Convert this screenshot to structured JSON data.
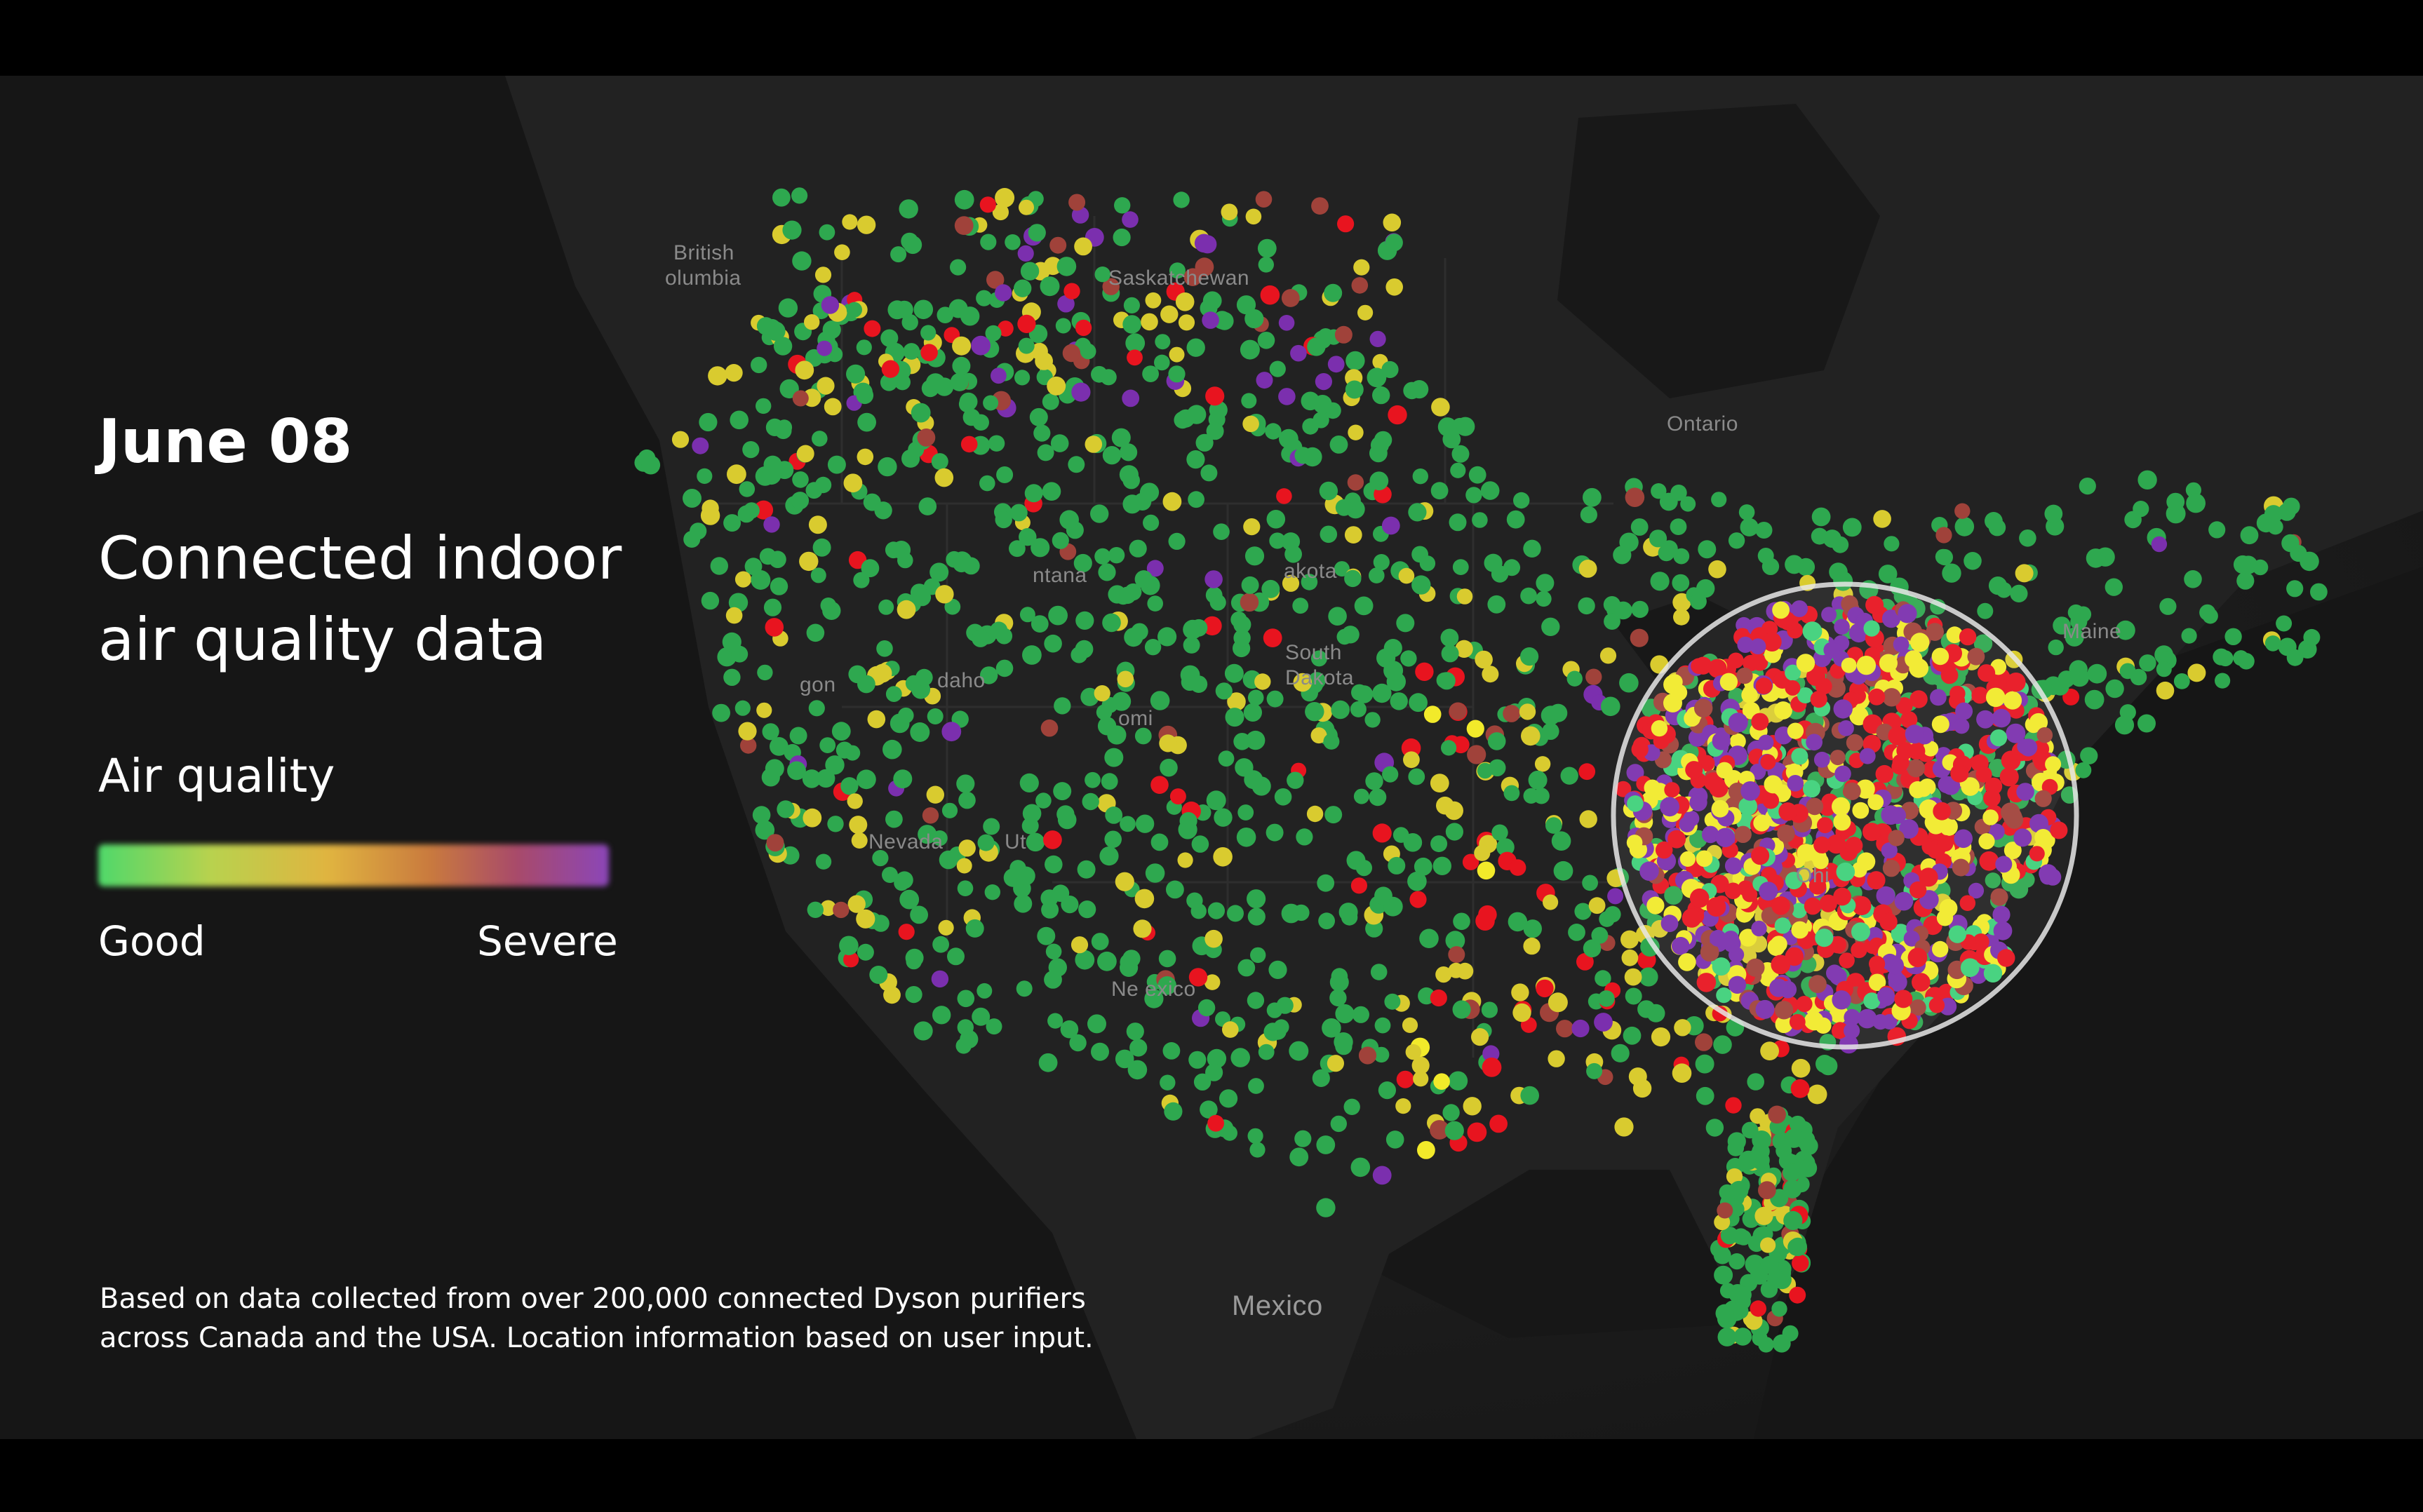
{
  "date": "June 08",
  "headline": "Connected indoor air quality data",
  "legend": {
    "title": "Air quality",
    "low_label": "Good",
    "high_label": "Severe",
    "colors": [
      "#4fd86a",
      "#b8d24e",
      "#e0b440",
      "#c97a3e",
      "#a84a6a",
      "#8b46b8"
    ]
  },
  "footnote_line1": "Based on data collected from over 200,000 connected Dyson purifiers",
  "footnote_line2": "across Canada and the USA. Location information based on user input.",
  "map_labels": {
    "british_columbia_1": "British",
    "british_columbia_2": "olumbia",
    "saskatchewan": "Saskatchewan",
    "ontario": "Ontario",
    "maine": "Maine",
    "montana": "ntana",
    "dakota": "akota",
    "south_dakota_1": "South",
    "south_dakota_2": "Dakota",
    "oregon": "gon",
    "idaho": "daho",
    "wyoming": "omi",
    "nevada": "Nevada",
    "utah": "Ut",
    "new_mexico": "Ne  exico",
    "ohio": "Ohi",
    "mexico": "Mexico"
  },
  "status_colors": {
    "good": "#2ea84f",
    "moderate": "#d9cb2f",
    "yellow_bright": "#f2ea2a",
    "unhealthy": "#e8141f",
    "very_unhealthy": "#a0423a",
    "severe": "#7b2fae",
    "mint": "#3ed17a"
  },
  "highlight_color": "#e8e8e8"
}
